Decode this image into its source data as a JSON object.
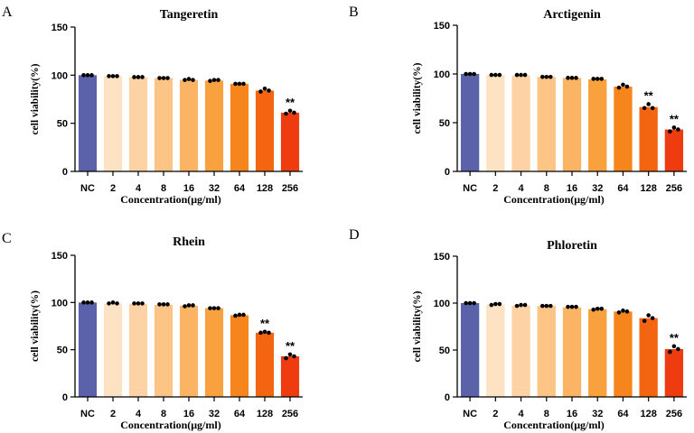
{
  "chart_data": [
    {
      "type": "bar",
      "panel": "A",
      "title": "Tangeretin",
      "xlabel": "Concentration(μg/ml)",
      "ylabel": "cell viability(%)",
      "ylim": [
        0,
        150
      ],
      "yticks": [
        0,
        50,
        100,
        150
      ],
      "categories": [
        "NC",
        "2",
        "4",
        "8",
        "16",
        "32",
        "64",
        "128",
        "256"
      ],
      "values": [
        100,
        99,
        98,
        97,
        95,
        94.5,
        91,
        84,
        61
      ],
      "points": [
        [
          100,
          100,
          100
        ],
        [
          99,
          99,
          99
        ],
        [
          98,
          98,
          98
        ],
        [
          97,
          97,
          97
        ],
        [
          95,
          96,
          95
        ],
        [
          94,
          95,
          95
        ],
        [
          91,
          91,
          91
        ],
        [
          83,
          86,
          84
        ],
        [
          60,
          63,
          61
        ]
      ],
      "significance": [
        "",
        "",
        "",
        "",
        "",
        "",
        "",
        "",
        "**"
      ],
      "colors": [
        "#5b62a9",
        "#fde3c4",
        "#fdd3a6",
        "#fcc586",
        "#fbb463",
        "#f9a03f",
        "#f7851e",
        "#f46512",
        "#ee3b10"
      ]
    },
    {
      "type": "bar",
      "panel": "B",
      "title": "Arctigenin",
      "xlabel": "Concentration(μg/ml)",
      "ylabel": "cell viability(%)",
      "ylim": [
        0,
        150
      ],
      "yticks": [
        0,
        50,
        100,
        150
      ],
      "categories": [
        "NC",
        "2",
        "4",
        "8",
        "16",
        "32",
        "64",
        "128",
        "256"
      ],
      "values": [
        100,
        99,
        98.5,
        97,
        96,
        94.5,
        87,
        66,
        43
      ],
      "points": [
        [
          100,
          100,
          100
        ],
        [
          99,
          99,
          99
        ],
        [
          99,
          99,
          99
        ],
        [
          97,
          97,
          97
        ],
        [
          96,
          96,
          96
        ],
        [
          95,
          95,
          95
        ],
        [
          86,
          89,
          87
        ],
        [
          65,
          69,
          65
        ],
        [
          41,
          45,
          43
        ]
      ],
      "significance": [
        "",
        "",
        "",
        "",
        "",
        "",
        "",
        "**",
        "**"
      ],
      "colors": [
        "#5b62a9",
        "#fde3c4",
        "#fdd3a6",
        "#fcc586",
        "#fbb463",
        "#f9a03f",
        "#f7851e",
        "#f46512",
        "#ee3b10"
      ]
    },
    {
      "type": "bar",
      "panel": "C",
      "title": "Rhein",
      "xlabel": "Concentration(μg/ml)",
      "ylabel": "cell viability(%)",
      "ylim": [
        0,
        150
      ],
      "yticks": [
        0,
        50,
        100,
        150
      ],
      "categories": [
        "NC",
        "2",
        "4",
        "8",
        "16",
        "32",
        "64",
        "128",
        "256"
      ],
      "values": [
        100,
        99,
        98.5,
        97.5,
        96.5,
        94,
        86.5,
        68,
        43
      ],
      "points": [
        [
          100,
          100,
          100
        ],
        [
          99,
          100,
          99
        ],
        [
          99,
          99,
          99
        ],
        [
          98,
          98,
          98
        ],
        [
          96,
          97,
          97
        ],
        [
          94,
          94,
          94
        ],
        [
          86,
          87,
          87
        ],
        [
          68,
          69,
          68
        ],
        [
          41,
          45,
          43
        ]
      ],
      "significance": [
        "",
        "",
        "",
        "",
        "",
        "",
        "",
        "**",
        "**"
      ],
      "colors": [
        "#5b62a9",
        "#fde3c4",
        "#fdd3a6",
        "#fcc586",
        "#fbb463",
        "#f9a03f",
        "#f7851e",
        "#f46512",
        "#ee3b10"
      ]
    },
    {
      "type": "bar",
      "panel": "D",
      "title": "Phloretin",
      "xlabel": "Concentration(μg/ml)",
      "ylabel": "cell viability(%)",
      "ylim": [
        0,
        150
      ],
      "yticks": [
        0,
        50,
        100,
        150
      ],
      "categories": [
        "NC",
        "2",
        "4",
        "8",
        "16",
        "32",
        "64",
        "128",
        "256"
      ],
      "values": [
        100,
        98.5,
        97.5,
        97,
        95.5,
        93.5,
        91,
        84,
        51
      ],
      "points": [
        [
          100,
          100,
          100
        ],
        [
          98,
          99,
          99
        ],
        [
          97,
          98,
          98
        ],
        [
          97,
          97,
          97
        ],
        [
          96,
          96,
          96
        ],
        [
          93,
          94,
          94
        ],
        [
          90,
          92,
          91
        ],
        [
          81,
          87,
          84
        ],
        [
          48,
          54,
          51
        ]
      ],
      "significance": [
        "",
        "",
        "",
        "",
        "",
        "",
        "",
        "",
        "**"
      ],
      "colors": [
        "#5b62a9",
        "#fde3c4",
        "#fdd3a6",
        "#fcc586",
        "#fbb463",
        "#f9a03f",
        "#f7851e",
        "#f46512",
        "#ee3b10"
      ]
    }
  ]
}
